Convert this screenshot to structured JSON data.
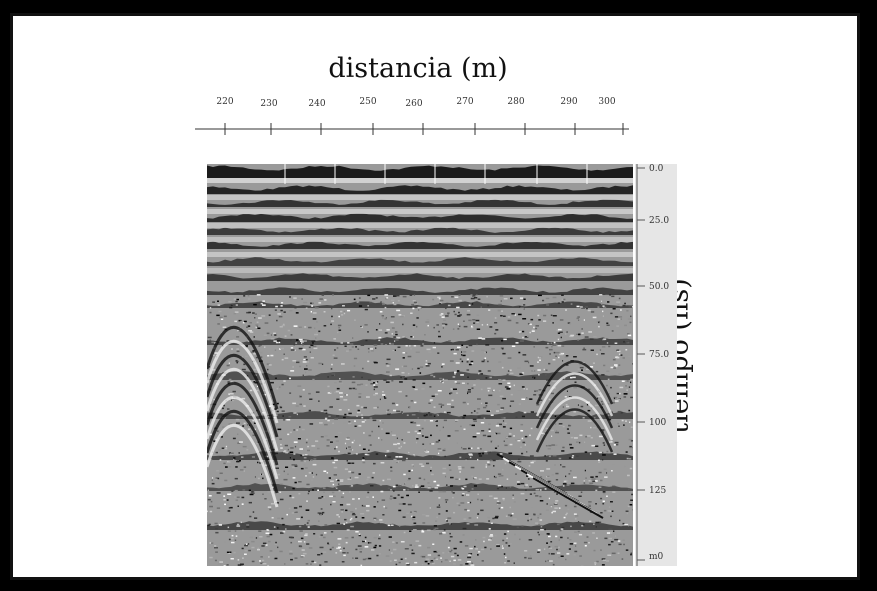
{
  "figure": {
    "x_title": "distancia (m)",
    "y_title": "tiempo (ns)",
    "x_ticks": [
      "220",
      "230",
      "240",
      "250",
      "260",
      "270",
      "280",
      "290",
      "300"
    ],
    "depth_ticks": [
      "0.0",
      "25.0",
      "50.0",
      "75.0",
      "100",
      "125",
      "m0"
    ],
    "image_description_colors": {
      "background": "#ffffff",
      "frame": "#000000",
      "strip": "#e6e6e6"
    }
  }
}
